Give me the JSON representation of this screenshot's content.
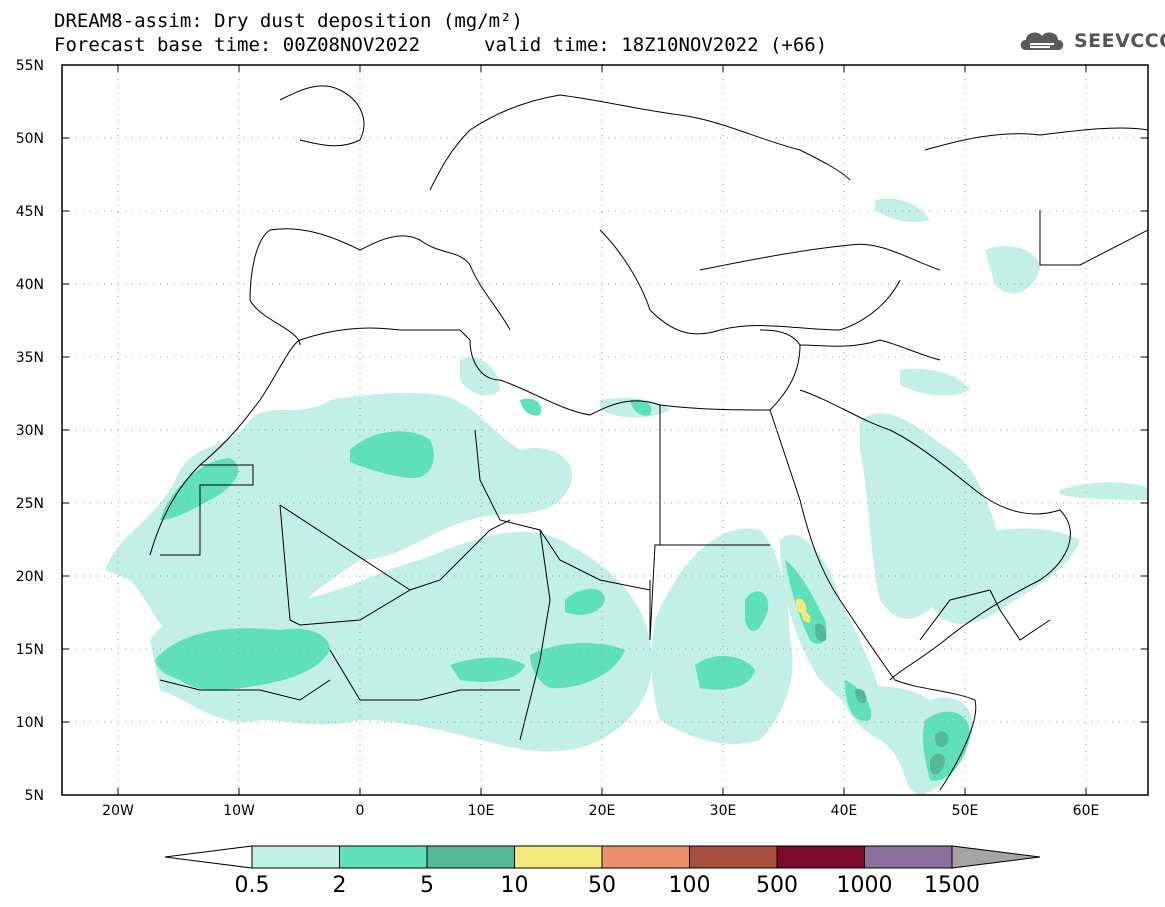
{
  "header": {
    "title_line1": "DREAM8-assim: Dry dust deposition (mg/m²)",
    "title_line2": "Forecast base time: 00Z08NOV2022",
    "valid_time": "valid time: 18Z10NOV2022 (+66)",
    "logo_text": "SEEVCCC"
  },
  "map": {
    "lon_range": [
      -25,
      65
    ],
    "lat_range": [
      5,
      55
    ],
    "lon_ticks": [
      "20W",
      "10W",
      "0",
      "10E",
      "20E",
      "30E",
      "40E",
      "50E",
      "60E"
    ],
    "lat_ticks": [
      "55N",
      "50N",
      "45N",
      "40N",
      "35N",
      "30N",
      "25N",
      "20N",
      "15N",
      "10N",
      "5N"
    ],
    "grid": "dotted"
  },
  "legend": {
    "labels": [
      "0.5",
      "2",
      "5",
      "10",
      "50",
      "100",
      "500",
      "1000",
      "1500"
    ],
    "colors": [
      "#c2efe6",
      "#5fe0b9",
      "#55b896",
      "#f3e97c",
      "#eb8f6c",
      "#a8503f",
      "#7d0a2a",
      "#8a6e9e"
    ],
    "under_color": "#ffffff",
    "over_color": "#a5a5a5"
  }
}
